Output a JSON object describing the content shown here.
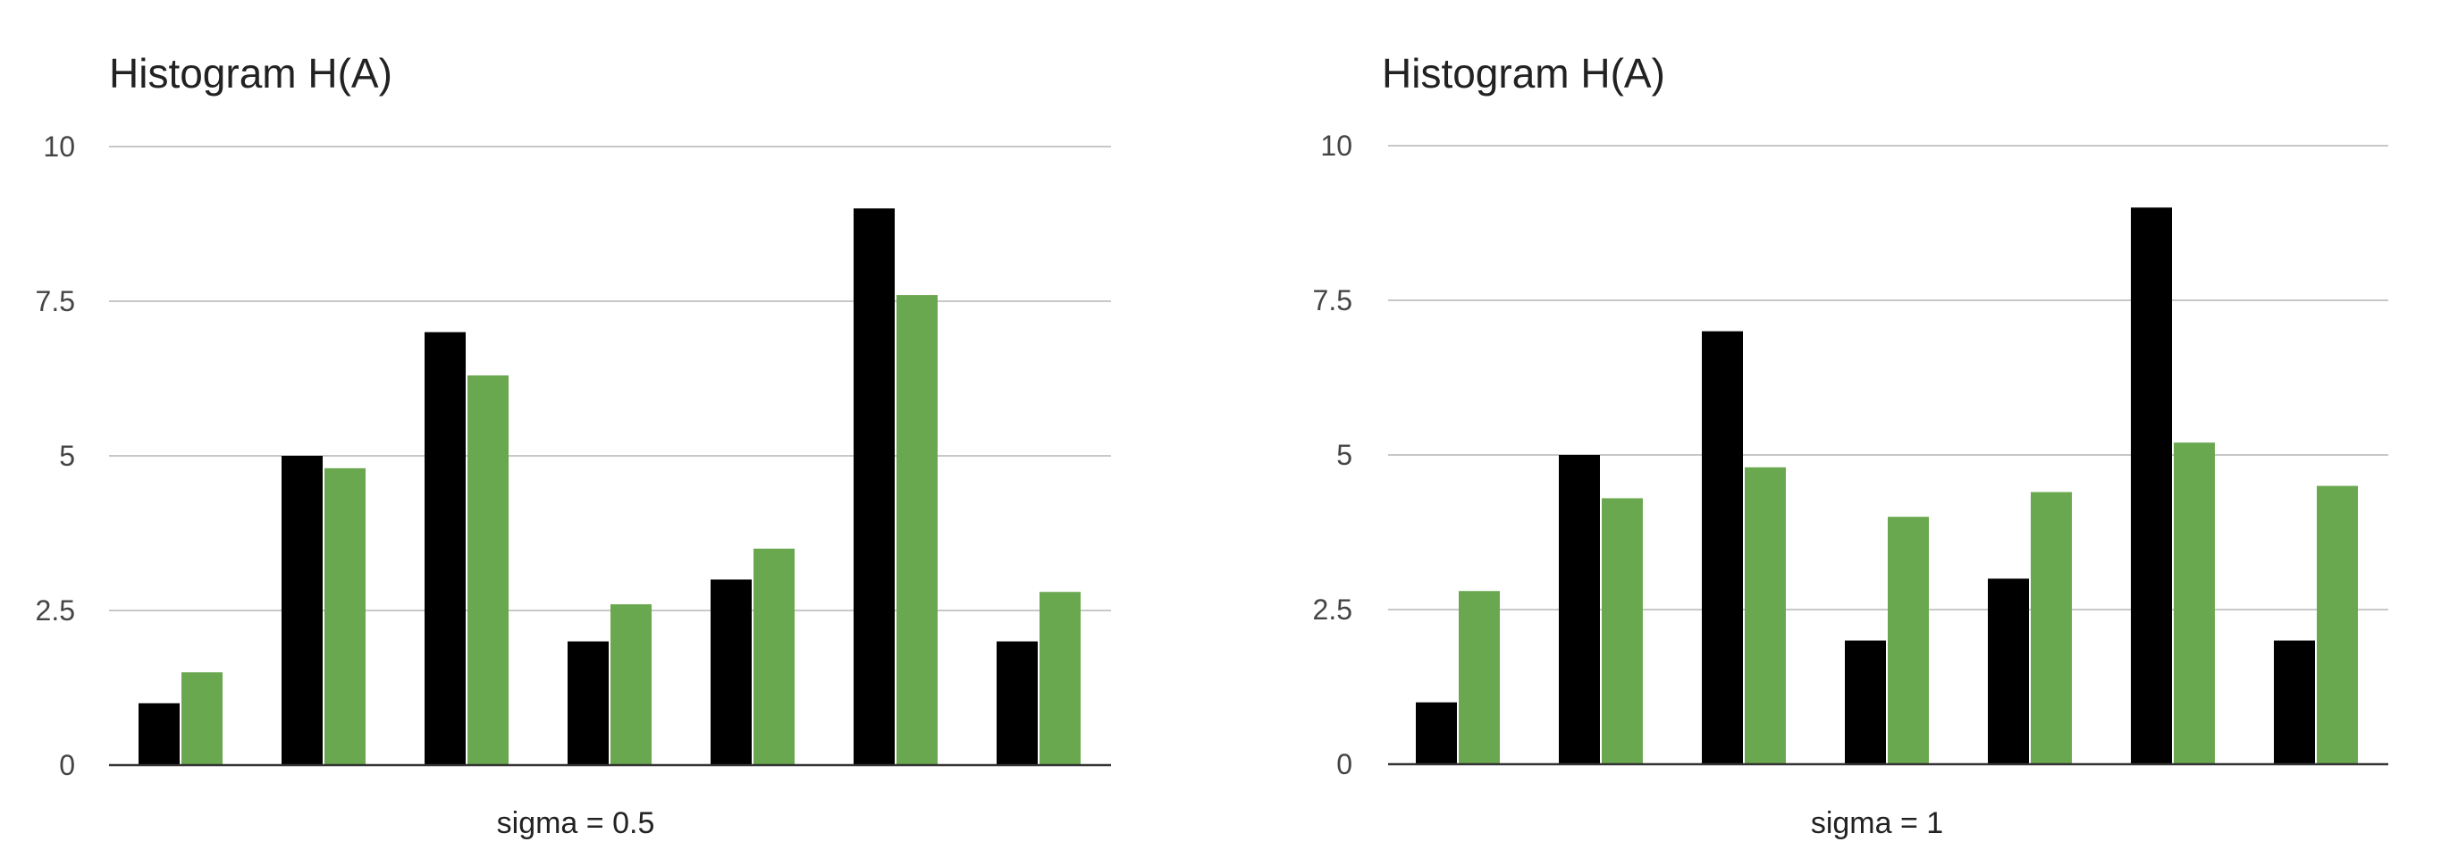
{
  "colors": {
    "series_a": "#000000",
    "series_b": "#6aa84f",
    "grid": "#c8c8c8",
    "baseline": "#333333"
  },
  "chart_data": [
    {
      "type": "bar",
      "title": "Histogram H(A)",
      "xlabel": "sigma = 0.5",
      "ylabel": "",
      "ylim": [
        0,
        10
      ],
      "yticks": [
        "0",
        "2.5",
        "5",
        "7.5",
        "10"
      ],
      "grid": true,
      "legend": "none",
      "categories": [
        "",
        "",
        "",
        "",
        "",
        "",
        ""
      ],
      "series": [
        {
          "values": [
            1,
            5,
            7,
            2,
            3,
            9,
            2
          ]
        },
        {
          "values": [
            1.5,
            4.8,
            6.3,
            2.6,
            3.5,
            7.6,
            2.8
          ]
        }
      ]
    },
    {
      "type": "bar",
      "title": "Histogram H(A)",
      "xlabel": "sigma = 1",
      "ylabel": "",
      "ylim": [
        0,
        10
      ],
      "yticks": [
        "0",
        "2.5",
        "5",
        "7.5",
        "10"
      ],
      "grid": true,
      "legend": "none",
      "categories": [
        "",
        "",
        "",
        "",
        "",
        "",
        ""
      ],
      "series": [
        {
          "values": [
            1,
            5,
            7,
            2,
            3,
            9,
            2
          ]
        },
        {
          "values": [
            2.8,
            4.3,
            4.8,
            4.0,
            4.4,
            5.2,
            4.5
          ]
        }
      ]
    }
  ]
}
